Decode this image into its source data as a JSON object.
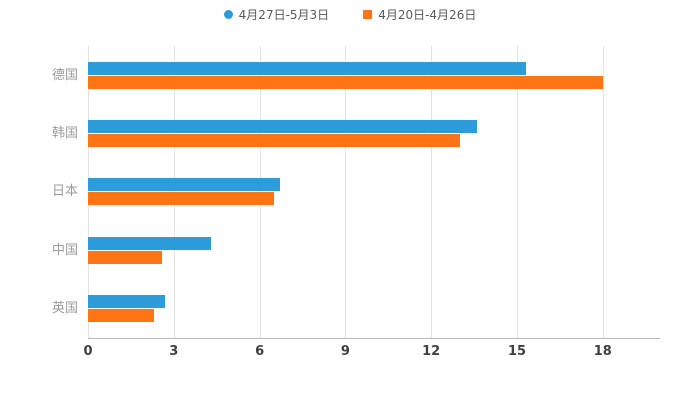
{
  "chart_data": {
    "type": "bar",
    "orientation": "horizontal",
    "title": "",
    "xlabel": "",
    "ylabel": "",
    "categories": [
      "德国",
      "韩国",
      "日本",
      "中国",
      "英国"
    ],
    "series": [
      {
        "name": "4月27日-5月3日",
        "color": "#2D9CDB",
        "marker": "circle",
        "values": [
          15.3,
          13.6,
          6.7,
          4.3,
          2.7
        ]
      },
      {
        "name": "4月20日-4月26日",
        "color": "#FF7415",
        "marker": "square",
        "values": [
          18,
          13,
          6.5,
          2.6,
          2.3
        ]
      }
    ],
    "xticks": [
      0,
      3,
      6,
      9,
      12,
      15,
      18
    ],
    "xlim": [
      0,
      20
    ],
    "grid": true,
    "legend_position": "top"
  },
  "style": {
    "gridline_color": "#e3e3e3",
    "axis_color": "#b7b7b7",
    "category_label_color": "#9b9b9b",
    "tick_label_color": "#404040",
    "legend_label_color": "#595959",
    "background": "#ffffff"
  }
}
